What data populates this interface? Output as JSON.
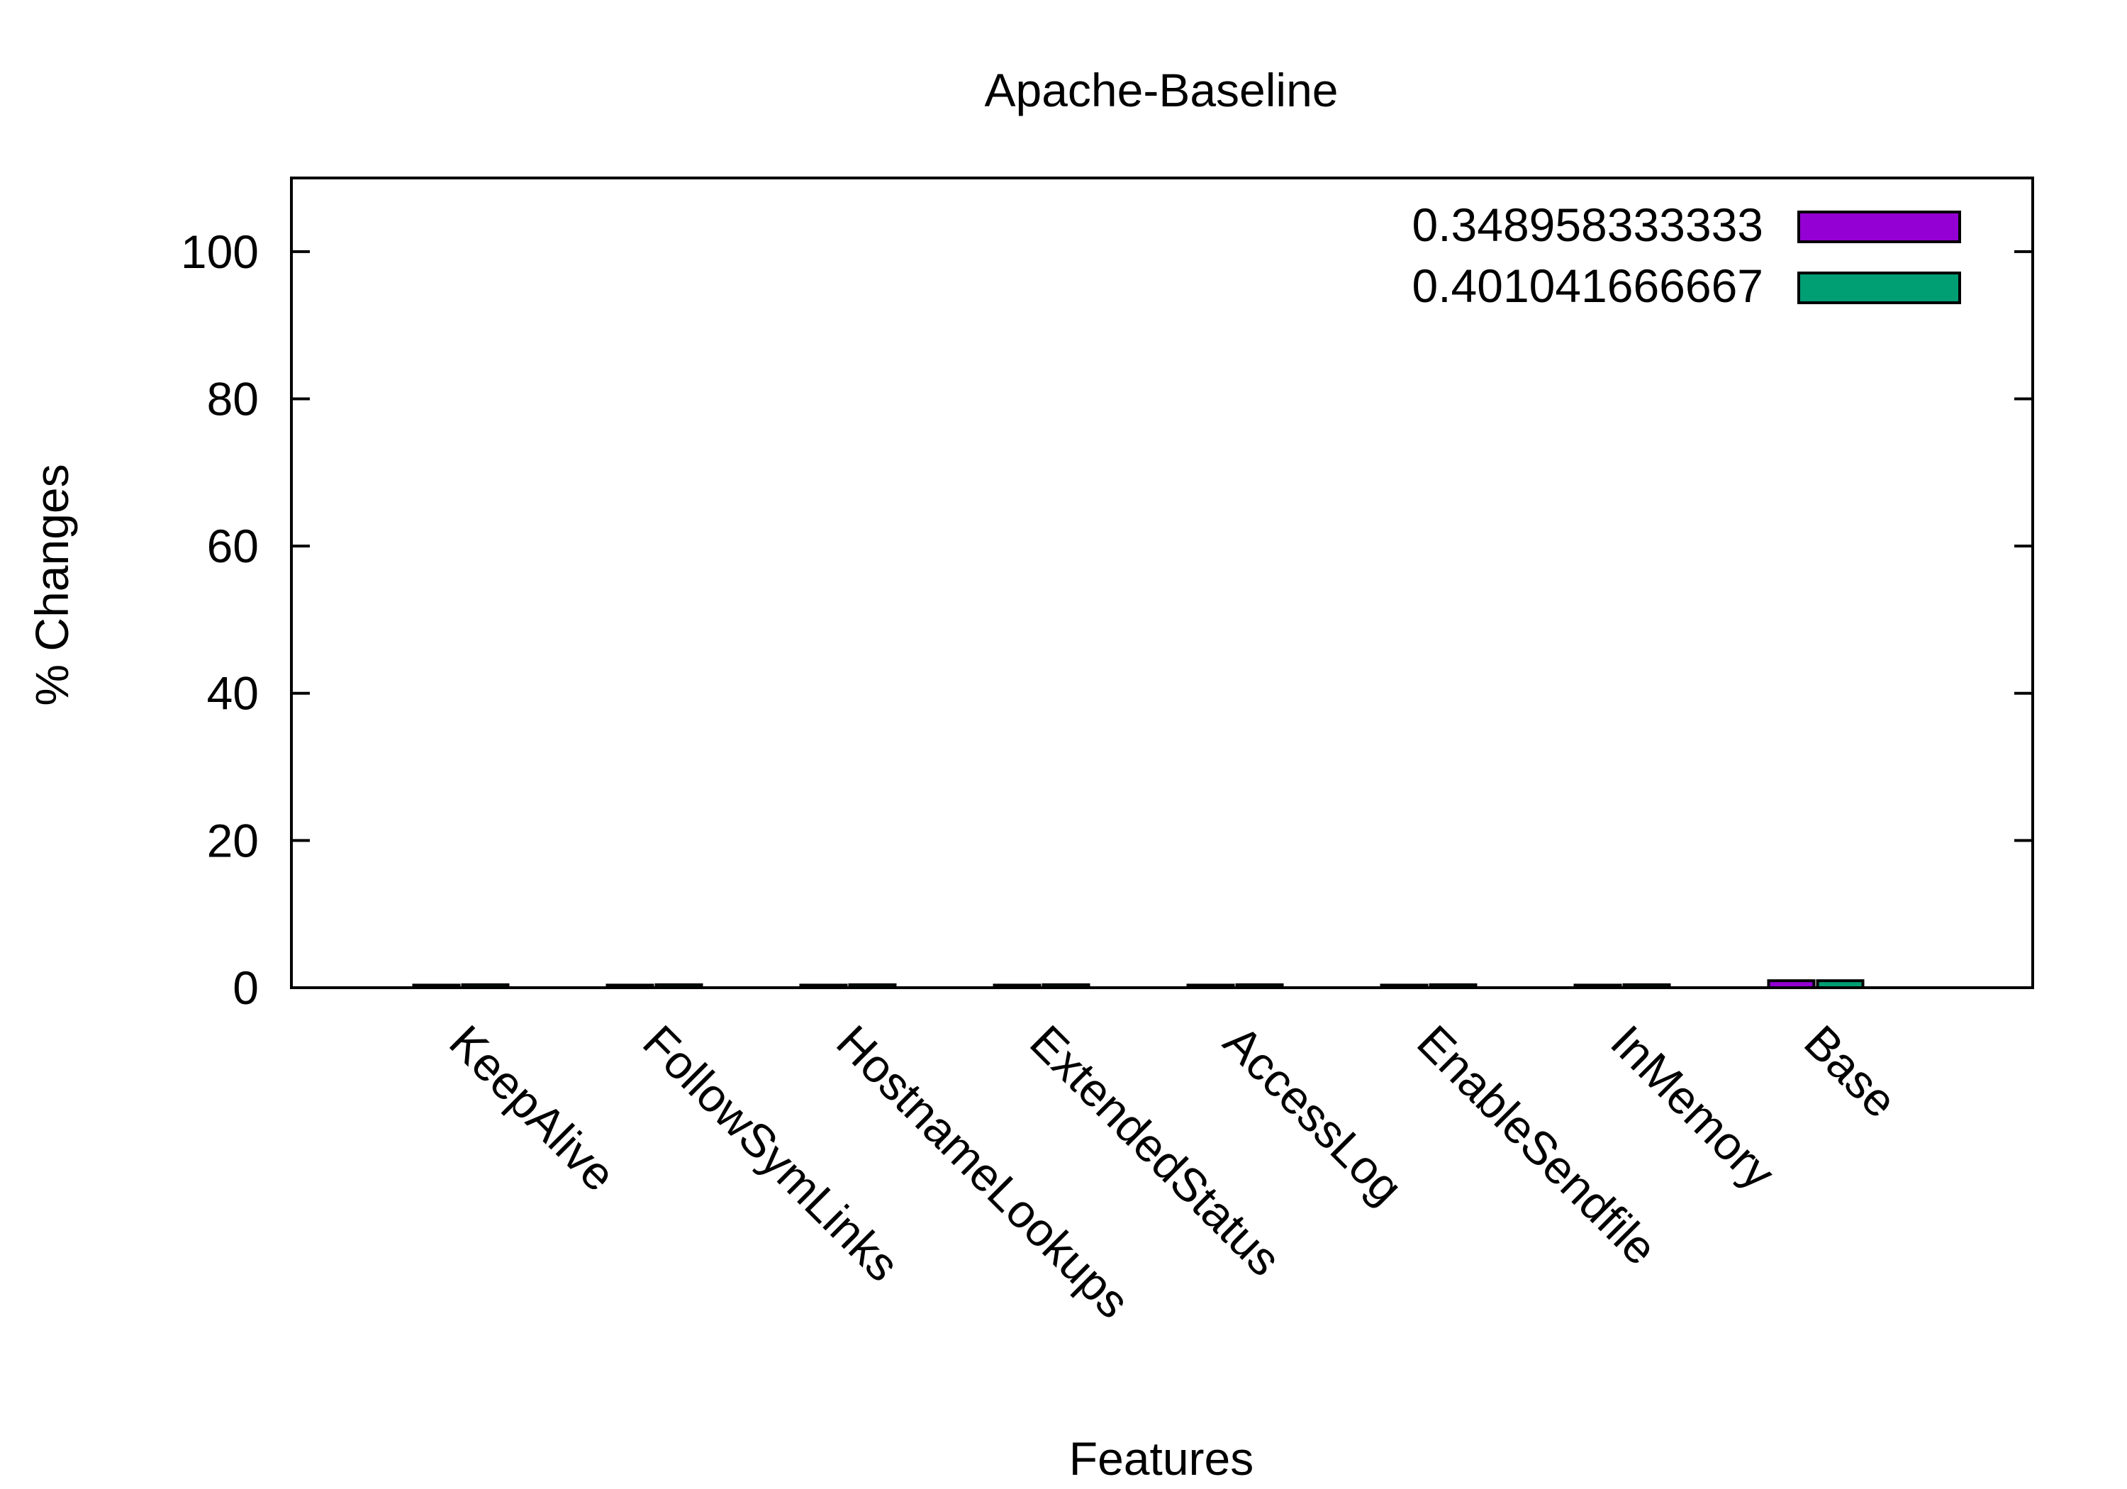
{
  "chart_data": {
    "type": "bar",
    "title": "Apache-Baseline",
    "xlabel": "Features",
    "ylabel": "% Changes",
    "categories": [
      "KeepAlive",
      "FollowSymLinks",
      "HostnameLookups",
      "ExtendedStatus",
      "AccessLog",
      "EnableSendfile",
      "InMemory",
      "Base"
    ],
    "series": [
      {
        "name": "0.348958333333",
        "color": "#9400d3",
        "values": [
          0.35,
          0.35,
          0.35,
          0.35,
          0.35,
          0.35,
          0.35,
          0.95
        ]
      },
      {
        "name": "0.401041666667",
        "color": "#009e73",
        "values": [
          0.4,
          0.4,
          0.4,
          0.4,
          0.4,
          0.4,
          0.4,
          0.95
        ]
      }
    ],
    "ylim": [
      0,
      110
    ],
    "yticks": [
      0,
      20,
      40,
      60,
      80,
      100
    ],
    "grid": false,
    "legend_position": "top-right"
  }
}
